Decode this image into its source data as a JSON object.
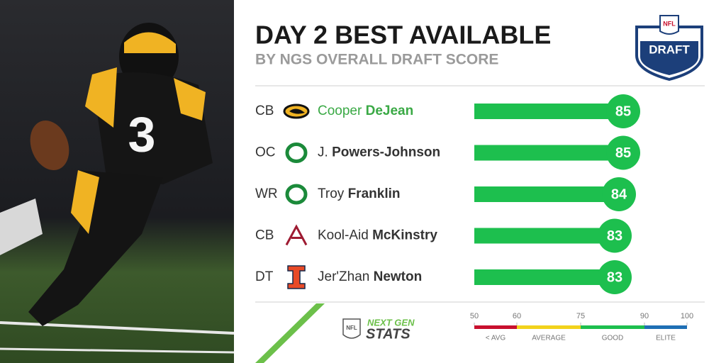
{
  "title": "DAY 2 BEST AVAILABLE",
  "subtitle": "BY NGS OVERALL DRAFT SCORE",
  "draft_logo": {
    "league": "NFL",
    "text": "DRAFT"
  },
  "ngs_logo": {
    "league": "NFL",
    "top": "NEXT GEN",
    "bottom": "STATS"
  },
  "chart_data": {
    "type": "bar",
    "positions": [
      "CB",
      "OC",
      "WR",
      "CB",
      "DT"
    ],
    "first_names": [
      "Cooper",
      "J.",
      "Troy",
      "Kool-Aid",
      "Jer'Zhan"
    ],
    "categories": [
      "DeJean",
      "Powers-Johnson",
      "Franklin",
      "McKinstry",
      "Newton"
    ],
    "schools": [
      "iowa",
      "oregon",
      "oregon",
      "alabama",
      "illinois"
    ],
    "values": [
      85,
      85,
      84,
      83,
      83
    ],
    "highlight_row": 0,
    "color": "#1dbf4e",
    "highlight_color": "#3aa945",
    "xlim": [
      50,
      100
    ],
    "xticks": [
      50,
      60,
      75,
      90,
      100
    ],
    "band_labels": [
      "< AVG",
      "AVERAGE",
      "GOOD",
      "ELITE"
    ],
    "band_colors": [
      "#c8102e",
      "#f2d21b",
      "#1dbf4e",
      "#1f6fb5"
    ]
  }
}
